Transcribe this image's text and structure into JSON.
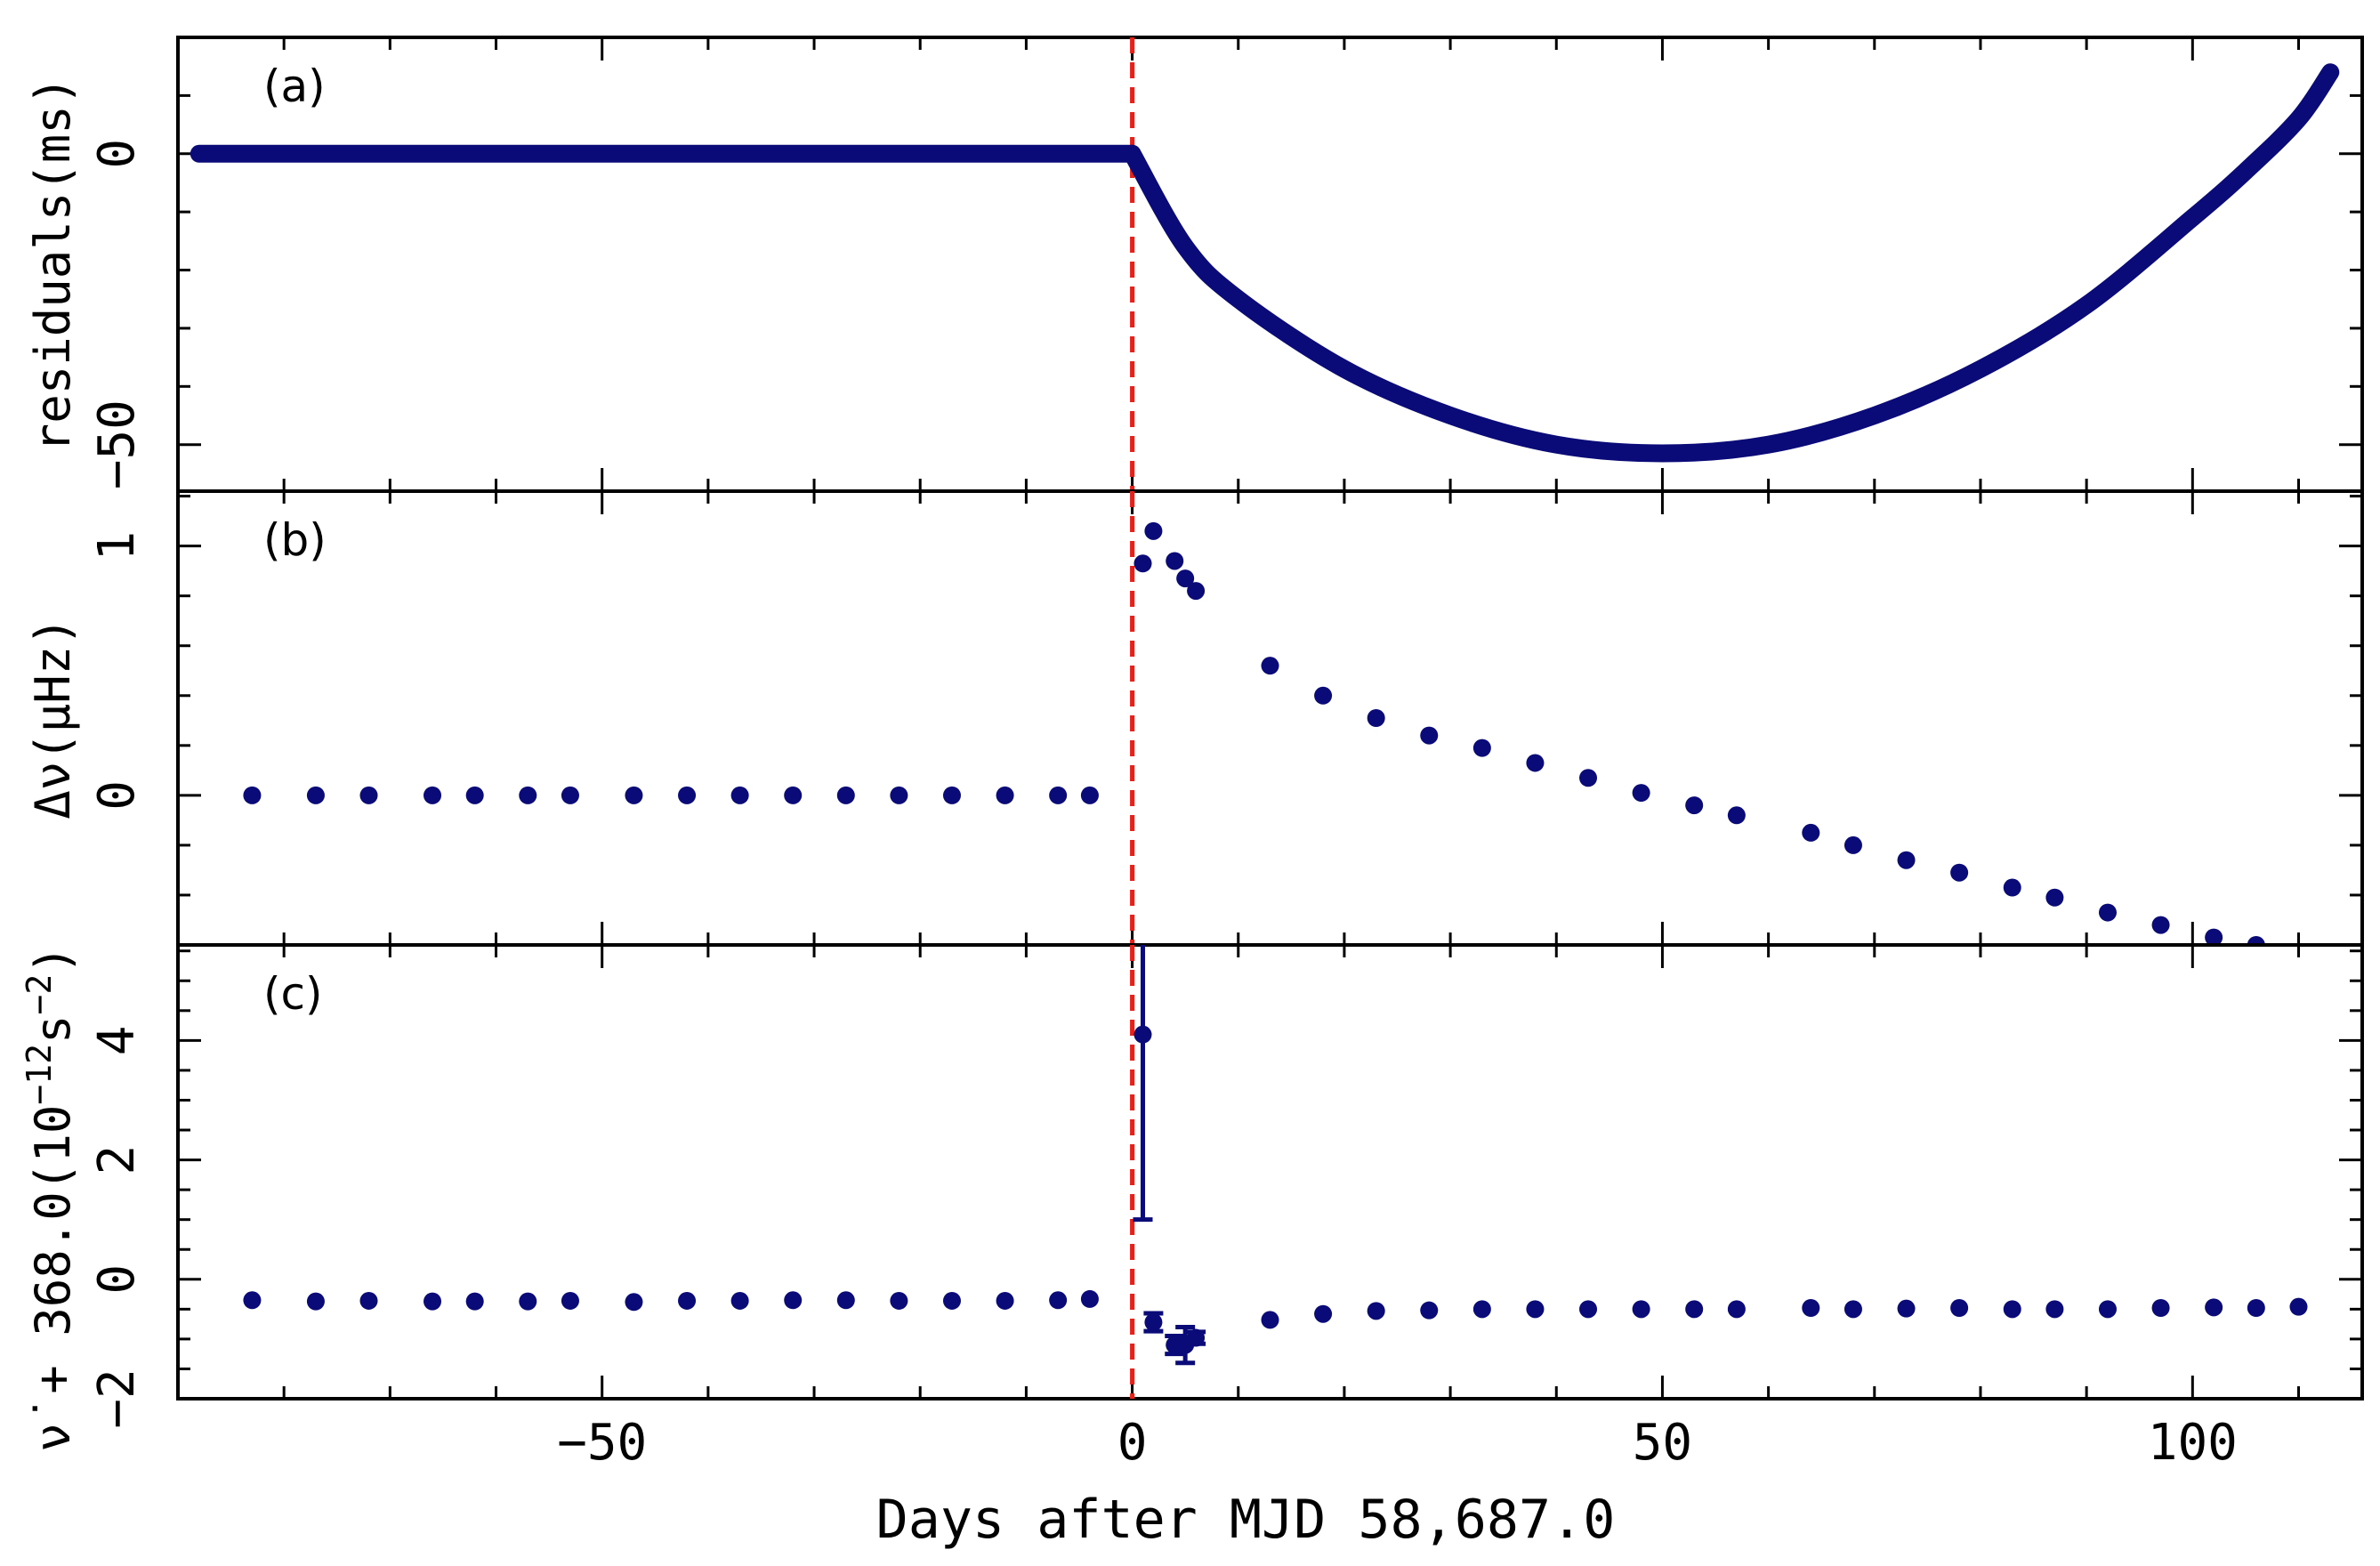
{
  "chart_data": [
    {
      "type": "scatter",
      "panel_label": "(a)",
      "ylabel": "residuals(ms)",
      "xlim": [
        -90,
        116
      ],
      "ylim": [
        -58,
        20
      ],
      "yticks": [
        0,
        -50
      ],
      "yticks_labels": [
        "0",
        "−50"
      ],
      "marker_color": "#0a0a78",
      "series": [
        {
          "x_range": [
            -88,
            0
          ],
          "y_constant": 0,
          "continuous": true
        },
        {
          "curve_points": [
            {
              "x": 0,
              "y": 0
            },
            {
              "x": 5,
              "y": -16
            },
            {
              "x": 10,
              "y": -25
            },
            {
              "x": 20,
              "y": -37
            },
            {
              "x": 30,
              "y": -45
            },
            {
              "x": 40,
              "y": -50
            },
            {
              "x": 50,
              "y": -51.5
            },
            {
              "x": 60,
              "y": -50
            },
            {
              "x": 70,
              "y": -45
            },
            {
              "x": 80,
              "y": -37
            },
            {
              "x": 90,
              "y": -26
            },
            {
              "x": 100,
              "y": -11
            },
            {
              "x": 105,
              "y": -3
            },
            {
              "x": 110,
              "y": 6
            },
            {
              "x": 113,
              "y": 14
            }
          ],
          "continuous": true
        }
      ]
    },
    {
      "type": "scatter",
      "panel_label": "(b)",
      "ylabel": "Δν(μHz)",
      "xlim": [
        -90,
        116
      ],
      "ylim": [
        -0.6,
        1.22
      ],
      "yticks": [
        1,
        0
      ],
      "yticks_labels": [
        "1",
        "0"
      ],
      "marker_color": "#0a0a78",
      "x": [
        -83,
        -77,
        -72,
        -66,
        -62,
        -57,
        -53,
        -47,
        -42,
        -37,
        -32,
        -27,
        -22,
        -17,
        -12,
        -7,
        -4,
        1,
        2,
        4,
        5,
        6,
        13,
        18,
        23,
        28,
        33,
        38,
        43,
        48,
        53,
        57,
        64,
        68,
        73,
        78,
        83,
        87,
        92,
        97,
        102,
        106
      ],
      "y": [
        0,
        0,
        0,
        0,
        0,
        0,
        0,
        0,
        0,
        0,
        0,
        0,
        0,
        0,
        0,
        0,
        0,
        0.93,
        1.06,
        0.94,
        0.87,
        0.82,
        0.52,
        0.4,
        0.31,
        0.24,
        0.19,
        0.13,
        0.07,
        0.01,
        -0.04,
        -0.08,
        -0.15,
        -0.2,
        -0.26,
        -0.31,
        -0.37,
        -0.41,
        -0.47,
        -0.52,
        -0.57,
        -0.6
      ]
    },
    {
      "type": "scatter",
      "panel_label": "(c)",
      "ylabel_main": "ν̇ + 368.0(10",
      "ylabel_exp": "−12",
      "ylabel_unit": "s",
      "ylabel_unit_exp": "−2",
      "ylabel_close": ")",
      "xlim": [
        -90,
        116
      ],
      "ylim": [
        -2,
        5.6
      ],
      "yticks": [
        4,
        2,
        0,
        -2
      ],
      "yticks_labels": [
        "4",
        "2",
        "0",
        "−2"
      ],
      "marker_color": "#0a0a78",
      "x": [
        -83,
        -77,
        -72,
        -66,
        -62,
        -57,
        -53,
        -47,
        -42,
        -37,
        -32,
        -27,
        -22,
        -17,
        -12,
        -7,
        -4,
        1,
        2,
        4,
        5,
        6,
        13,
        18,
        23,
        28,
        33,
        38,
        43,
        48,
        53,
        57,
        64,
        68,
        73,
        78,
        83,
        87,
        92,
        97,
        102,
        106,
        110
      ],
      "y": [
        -0.35,
        -0.37,
        -0.36,
        -0.37,
        -0.37,
        -0.37,
        -0.36,
        -0.38,
        -0.36,
        -0.36,
        -0.35,
        -0.35,
        -0.36,
        -0.36,
        -0.36,
        -0.35,
        -0.33,
        4.1,
        -0.72,
        -1.1,
        -1.1,
        -0.98,
        -0.68,
        -0.58,
        -0.53,
        -0.52,
        -0.5,
        -0.5,
        -0.5,
        -0.5,
        -0.5,
        -0.5,
        -0.48,
        -0.5,
        -0.49,
        -0.48,
        -0.5,
        -0.5,
        -0.5,
        -0.48,
        -0.47,
        -0.48,
        -0.46
      ],
      "yerr": [
        0,
        0,
        0,
        0,
        0,
        0,
        0,
        0,
        0,
        0,
        0,
        0,
        0,
        0,
        0,
        0,
        0,
        3.1,
        0.15,
        0.15,
        0.3,
        0.1,
        0,
        0,
        0,
        0,
        0,
        0,
        0,
        0,
        0,
        0,
        0,
        0,
        0,
        0,
        0,
        0,
        0,
        0,
        0,
        0,
        0
      ]
    }
  ],
  "x_axis": {
    "label": "Days after MJD 58,687.0",
    "ticks": [
      -50,
      0,
      50,
      100
    ],
    "ticks_labels": [
      "−50",
      "0",
      "50",
      "100"
    ],
    "glitch_epoch": 0,
    "glitch_line_color": "#e8201a"
  }
}
